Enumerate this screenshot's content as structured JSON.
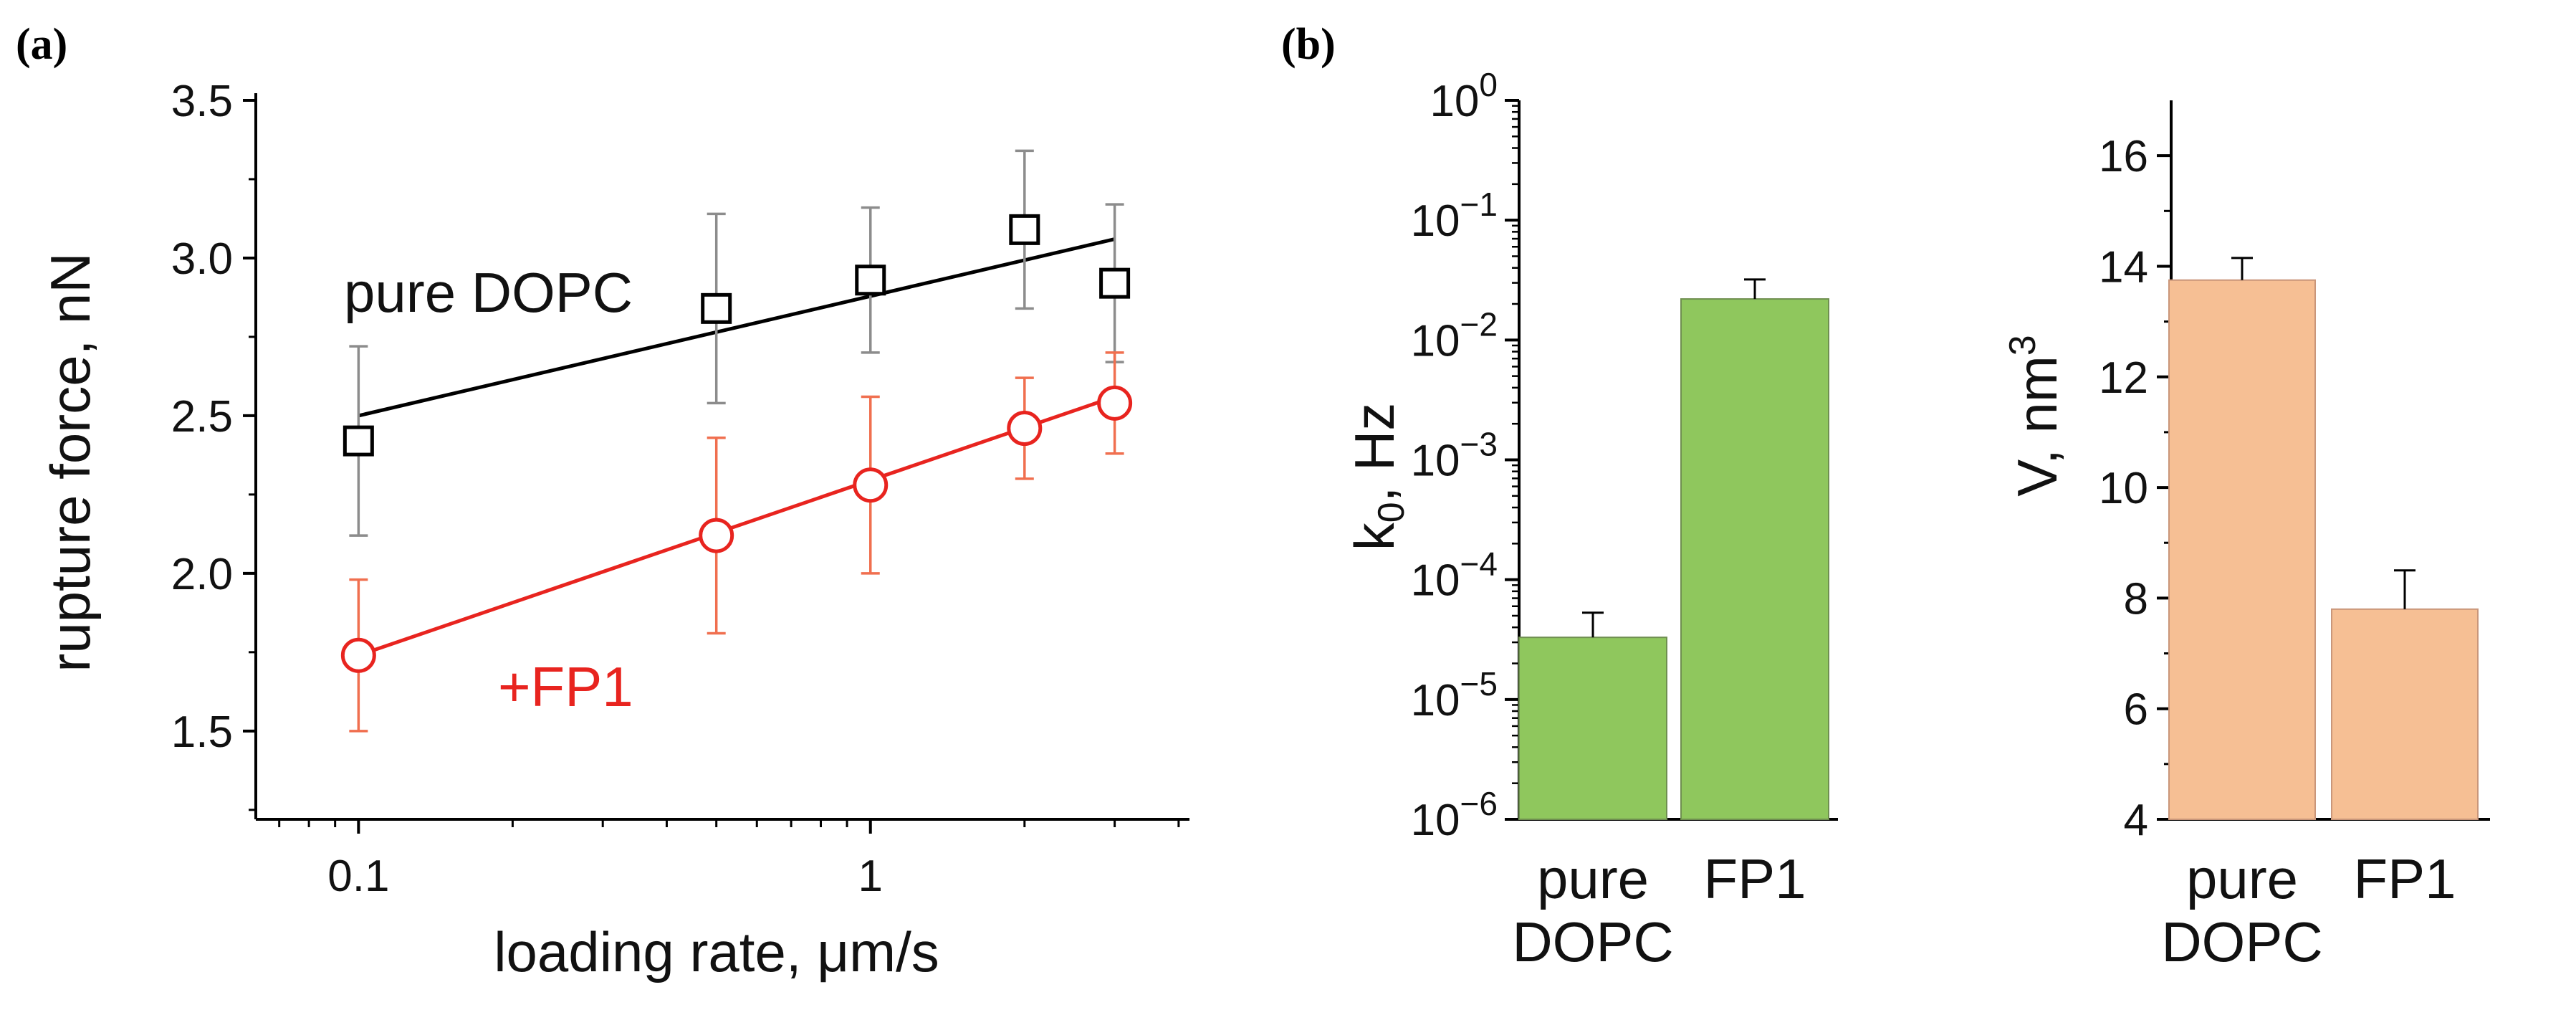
{
  "colors": {
    "black_series": "#000000",
    "red_series": "#e8241f",
    "black_error": "#8c8c8c",
    "red_error": "#f06f4f",
    "green_bar": "#8fc75d",
    "orange_bar": "#f6bf94",
    "bar_error": "#000000"
  },
  "panel_a_label": "(a)",
  "panel_b_label": "(b)",
  "chart_data": [
    {
      "type": "scatter",
      "panel": "(a)",
      "xlabel": "loading rate, μm/s",
      "ylabel": "rupture force, nN",
      "xscale": "log",
      "xlim": [
        0.063,
        4.2
      ],
      "ylim": [
        1.22,
        3.5
      ],
      "x_ticks": [
        {
          "value": 0.1,
          "label": "0.1"
        },
        {
          "value": 1,
          "label": "1"
        }
      ],
      "y_ticks": [
        {
          "value": 1.5,
          "label": "1.5"
        },
        {
          "value": 2.0,
          "label": "2.0"
        },
        {
          "value": 2.5,
          "label": "2.5"
        },
        {
          "value": 3.0,
          "label": "3.0"
        },
        {
          "value": 3.5,
          "label": "3.5"
        }
      ],
      "series": [
        {
          "name": "pure DOPC",
          "marker": "square",
          "x": [
            0.1,
            0.5,
            1,
            2,
            3
          ],
          "y": [
            2.42,
            2.84,
            2.93,
            3.09,
            2.92
          ],
          "yerr": [
            0.3,
            0.3,
            0.23,
            0.25,
            0.25
          ],
          "fit": {
            "x": [
              0.1,
              3
            ],
            "y": [
              2.5,
              3.06
            ]
          }
        },
        {
          "name": "+FP1",
          "marker": "circle",
          "x": [
            0.1,
            0.5,
            1,
            2,
            3
          ],
          "y": [
            1.74,
            2.12,
            2.28,
            2.46,
            2.54
          ],
          "yerr": [
            0.24,
            0.31,
            0.28,
            0.16,
            0.16
          ],
          "fit": {
            "x": [
              0.1,
              3
            ],
            "y": [
              1.74,
              2.56
            ]
          }
        }
      ],
      "grid": false
    },
    {
      "type": "bar",
      "panel": "(b)",
      "ylabel_main": "k",
      "ylabel_sub": "0",
      "ylabel_rest": ", Hz",
      "yscale": "log",
      "ylim_exponent": [
        -6,
        0
      ],
      "y_tick_exponents": [
        "0",
        "-1",
        "-2",
        "-3",
        "-4",
        "-5",
        "-6"
      ],
      "y_tick_base": "10",
      "categories": [
        [
          "pure",
          "DOPC"
        ],
        [
          "FP1"
        ]
      ],
      "values": [
        3.3e-05,
        0.022
      ],
      "errors_up": [
        5.3e-05,
        0.032
      ],
      "grid": false
    },
    {
      "type": "bar",
      "panel": "(b)",
      "ylabel_main": "V, nm",
      "ylabel_sup": "3",
      "ylim": [
        4,
        17
      ],
      "y_ticks": [
        4,
        6,
        8,
        10,
        12,
        14,
        16
      ],
      "categories": [
        [
          "pure",
          "DOPC"
        ],
        [
          "FP1"
        ]
      ],
      "values": [
        13.75,
        7.8
      ],
      "errors_up": [
        14.15,
        8.5
      ],
      "grid": false
    }
  ]
}
